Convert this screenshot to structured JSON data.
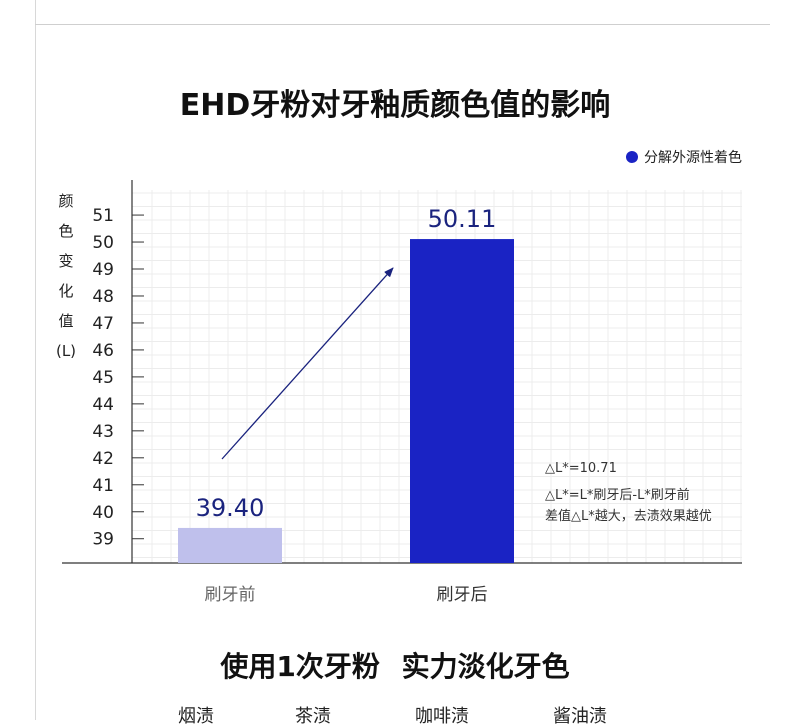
{
  "title": "EHD牙粉对牙釉质颜色值的影响",
  "legend": {
    "label": "分解外源性着色",
    "color": "#1a23c4"
  },
  "ylabel_chars": [
    "颜",
    "色",
    "变",
    "化",
    "值",
    "(L)"
  ],
  "chart_data": {
    "type": "bar",
    "categories": [
      "刷牙前",
      "刷牙后"
    ],
    "series": [
      {
        "name": "分解外源性着色",
        "values": [
          39.4,
          50.11
        ]
      }
    ],
    "value_labels": [
      "39.40",
      "50.11"
    ],
    "bar_colors": [
      "#bfc0ec",
      "#1a23c4"
    ],
    "yticks": [
      39,
      40,
      41,
      42,
      43,
      44,
      45,
      46,
      47,
      48,
      49,
      50,
      51
    ],
    "ylim": [
      38.1,
      52.3
    ],
    "grid": true,
    "legend_position": "top-right"
  },
  "notes": [
    "△L*=10.71",
    "△L*=L*刷牙后-L*刷牙前",
    "差值△L*越大，去渍效果越优"
  ],
  "subtitle": "使用1次牙粉 实力淡化牙色",
  "stains": [
    "烟渍",
    "茶渍",
    "咖啡渍",
    "酱油渍"
  ]
}
